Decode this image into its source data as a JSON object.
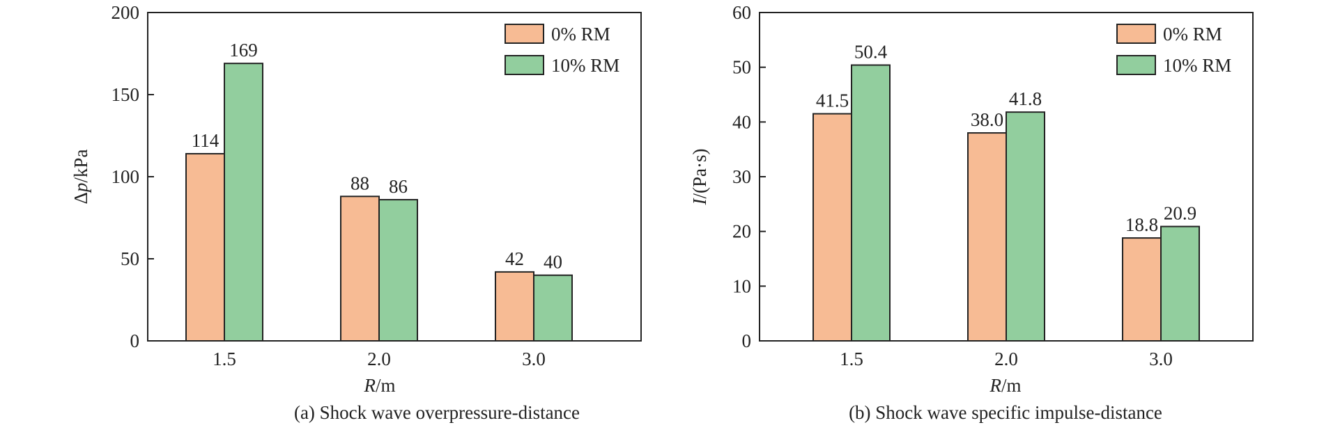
{
  "colors": {
    "series_0": "#f7bb94",
    "series_1": "#92ce9e",
    "axis": "#222222"
  },
  "chart_data": [
    {
      "type": "bar",
      "caption": "(a) Shock wave overpressure-distance",
      "xlabel_italic": "R",
      "xlabel_rest": "/m",
      "ylabel_prefix": "Δ",
      "ylabel_italic": "p",
      "ylabel_rest": "/kPa",
      "categories": [
        "1.5",
        "2.0",
        "3.0"
      ],
      "ylim": [
        0,
        200
      ],
      "yticks": [
        0,
        50,
        100,
        150,
        200
      ],
      "ytick_labels": [
        "0",
        "50",
        "100",
        "150",
        "200"
      ],
      "legend_position": "top-right",
      "series": [
        {
          "name": "0% RM",
          "values": [
            114,
            88,
            42
          ],
          "labels": [
            "114",
            "88",
            "42"
          ]
        },
        {
          "name": "10% RM",
          "values": [
            169,
            86,
            40
          ],
          "labels": [
            "169",
            "86",
            "40"
          ]
        }
      ]
    },
    {
      "type": "bar",
      "caption": "(b) Shock wave specific impulse-distance",
      "xlabel_italic": "R",
      "xlabel_rest": "/m",
      "ylabel_prefix": "",
      "ylabel_italic": "I",
      "ylabel_rest": "/(Pa·s)",
      "categories": [
        "1.5",
        "2.0",
        "3.0"
      ],
      "ylim": [
        0,
        60
      ],
      "yticks": [
        0,
        10,
        20,
        30,
        40,
        50,
        60
      ],
      "ytick_labels": [
        "0",
        "10",
        "20",
        "30",
        "40",
        "50",
        "60"
      ],
      "legend_position": "top-right",
      "series": [
        {
          "name": "0% RM",
          "values": [
            41.5,
            38.0,
            18.8
          ],
          "labels": [
            "41.5",
            "38.0",
            "18.8"
          ]
        },
        {
          "name": "10% RM",
          "values": [
            50.4,
            41.8,
            20.9
          ],
          "labels": [
            "50.4",
            "41.8",
            "20.9"
          ]
        }
      ]
    }
  ]
}
